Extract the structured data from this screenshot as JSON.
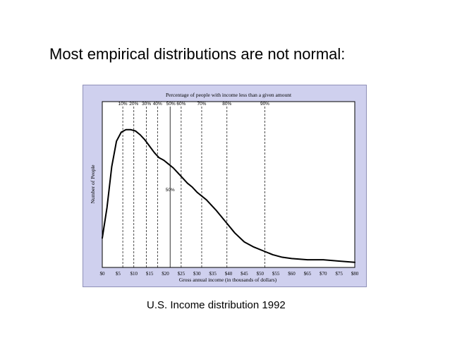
{
  "slide": {
    "title": "Most empirical distributions are not normal:",
    "caption": "U.S. Income distribution 1992"
  },
  "colors": {
    "frame_background": "#cfd0ee",
    "plot_background": "#ffffff",
    "ink": "#000000"
  },
  "chart_data": {
    "type": "line",
    "title": "Percentage of people with income less than a given amount",
    "xlabel": "Gross annual income (in thousands of dollars)",
    "ylabel": "Number of People",
    "xlim": [
      0,
      80
    ],
    "x_ticks": [
      0,
      5,
      10,
      15,
      20,
      25,
      30,
      35,
      40,
      45,
      50,
      55,
      60,
      65,
      70,
      75,
      80
    ],
    "x_tick_labels": [
      "$0",
      "$5",
      "$10",
      "$15",
      "$20",
      "$25",
      "$30",
      "$35",
      "$40",
      "$45",
      "$50",
      "$55",
      "$60",
      "$65",
      "$70",
      "$75",
      "$80"
    ],
    "y_ticks": "none",
    "grid": false,
    "legend": "none",
    "series": [
      {
        "x": [
          0,
          1.5,
          3,
          4.5,
          6,
          7.5,
          9,
          10.5,
          12,
          13.5,
          15,
          16.5,
          18,
          19.5,
          21,
          22.5,
          24,
          25.5,
          27,
          28.5,
          30,
          33,
          36,
          39,
          42,
          45,
          48,
          51,
          54,
          57,
          60,
          65,
          70,
          75,
          80
        ],
        "y": [
          0.23,
          0.47,
          0.79,
          0.99,
          1.06,
          1.08,
          1.08,
          1.07,
          1.04,
          1.0,
          0.95,
          0.9,
          0.86,
          0.84,
          0.81,
          0.78,
          0.74,
          0.7,
          0.66,
          0.63,
          0.59,
          0.53,
          0.45,
          0.36,
          0.27,
          0.2,
          0.16,
          0.13,
          0.1,
          0.08,
          0.07,
          0.06,
          0.06,
          0.05,
          0.04
        ]
      }
    ],
    "percentile_markers": [
      {
        "label": "10%",
        "x": 6.5
      },
      {
        "label": "20%",
        "x": 10
      },
      {
        "label": "30%",
        "x": 14
      },
      {
        "label": "40%",
        "x": 17.5
      },
      {
        "label": "50%",
        "x": 21.5
      },
      {
        "label": "60%",
        "x": 25
      },
      {
        "label": "70%",
        "x": 31.5
      },
      {
        "label": "80%",
        "x": 39.5
      },
      {
        "label": "90%",
        "x": 51.5
      }
    ],
    "median_label": "50%",
    "top_marker_labels": [
      "10%",
      "20%",
      "30%",
      "40%",
      "50%",
      "60%",
      "70%",
      "80%",
      "90%"
    ]
  }
}
